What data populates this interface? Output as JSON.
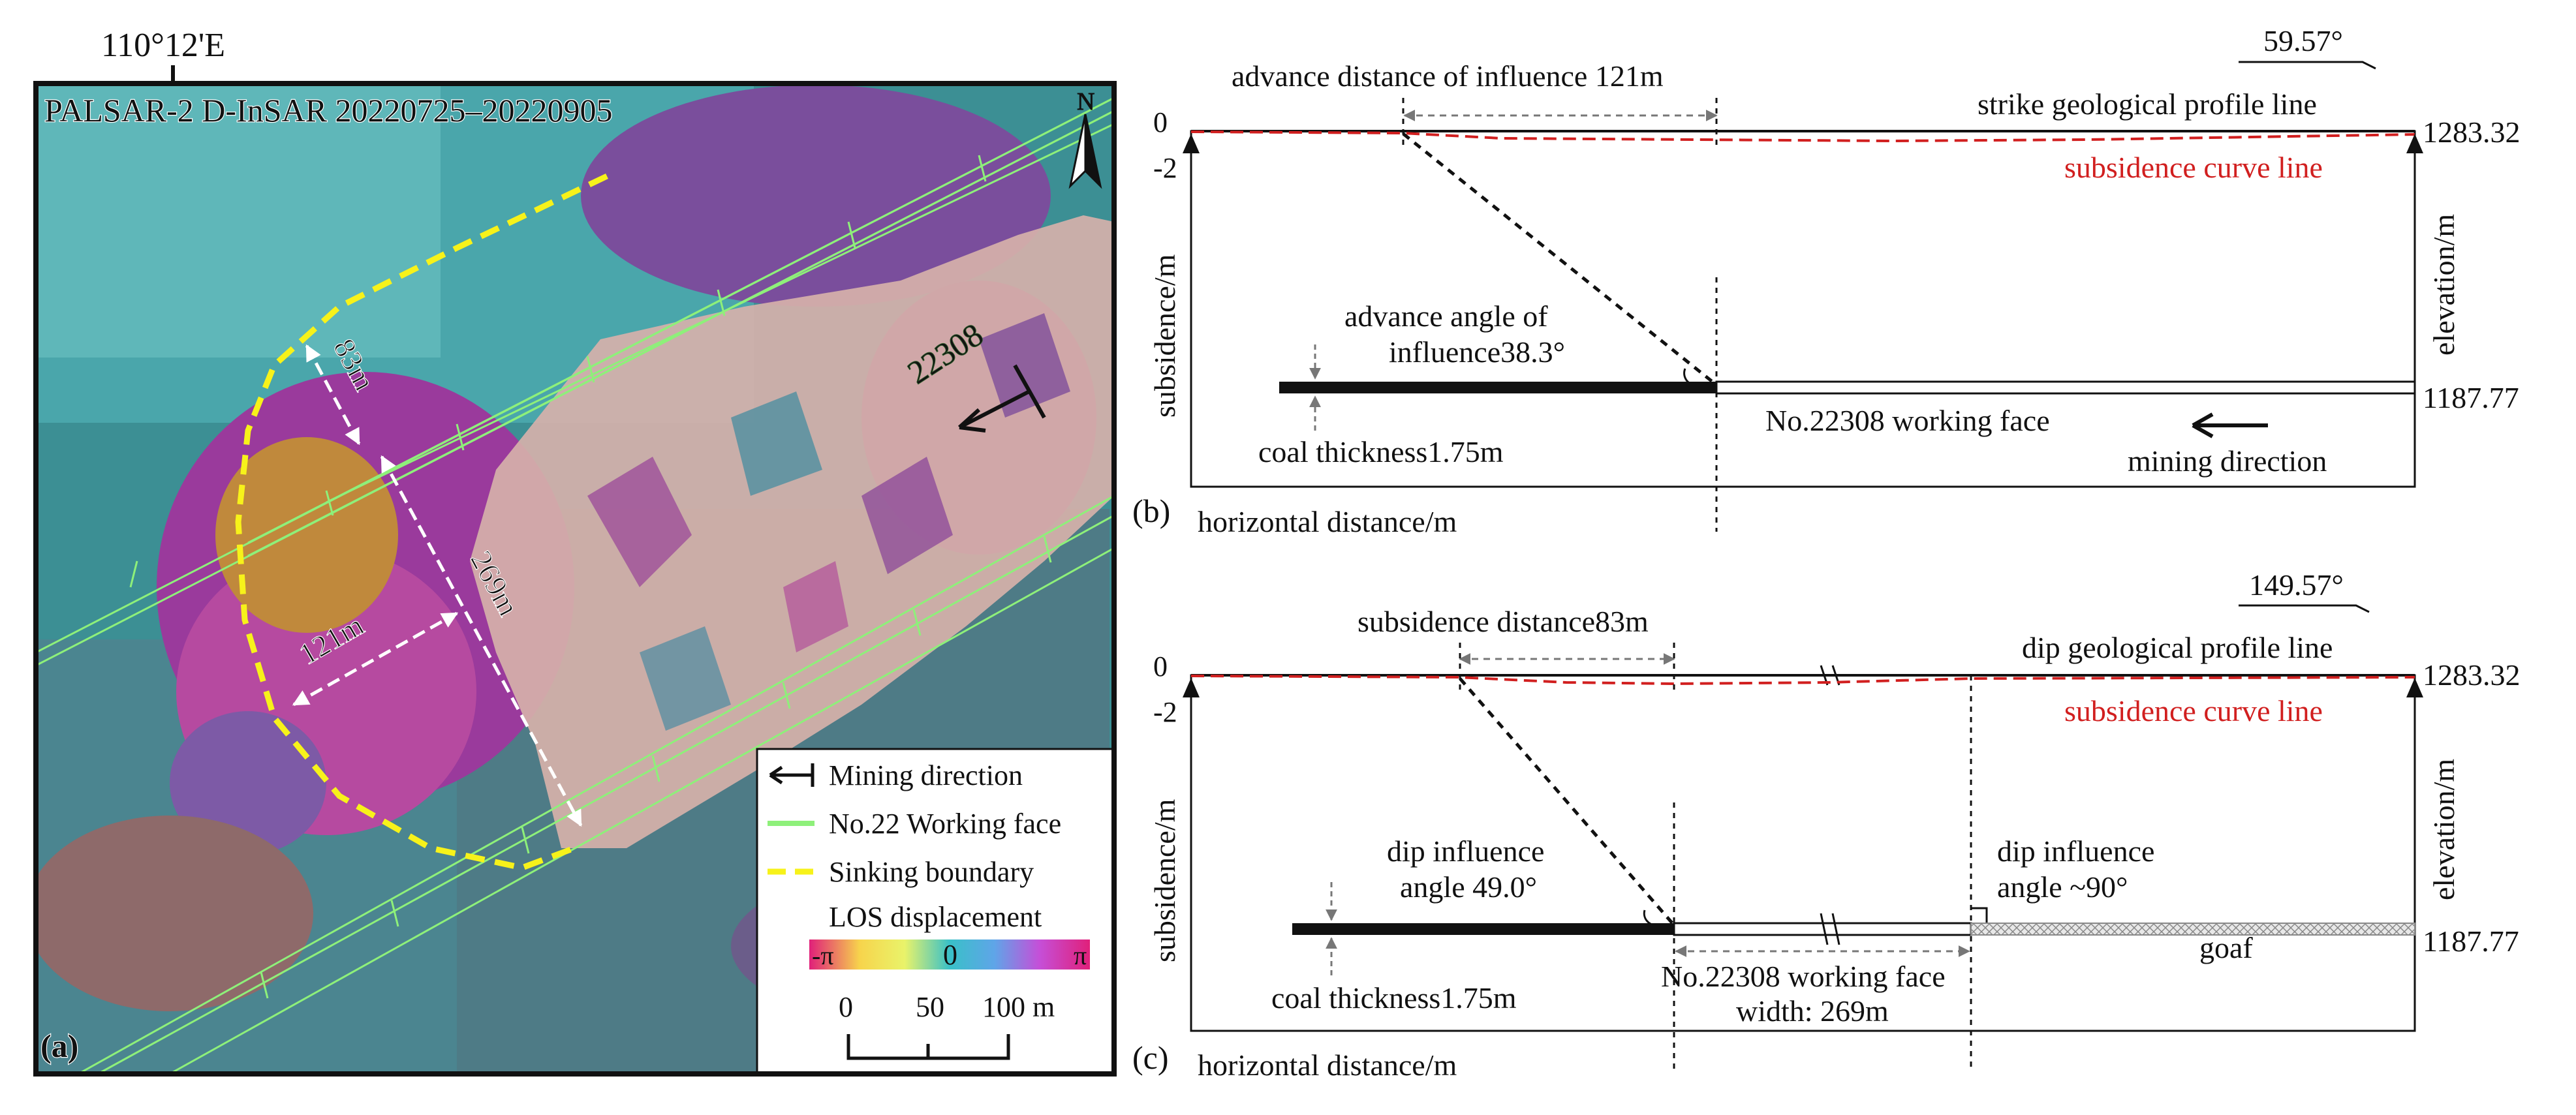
{
  "panel_a": {
    "longitude_label": "110°12'E",
    "title": "PALSAR-2 D-InSAR 20220725–20220905",
    "north_label": "N",
    "panel_label": "(a)",
    "face_label": "22308",
    "dim_83": "83m",
    "dim_121": "121m",
    "dim_269": "269m",
    "legend": {
      "mining_direction": "Mining direction",
      "working_face": "No.22 Working face",
      "sinking_boundary": "Sinking boundary",
      "los_title": "LOS displacement",
      "neg_pi": "-π",
      "zero": "0",
      "pos_pi": "π",
      "scale_labels": [
        "0",
        "50",
        "100 m"
      ]
    },
    "colors": {
      "border": "#111111",
      "working_face": "#8ef07a",
      "sinking_boundary": "#f7f21a",
      "dimension": "#ffffff",
      "goaf_fill": "#d6b1aa"
    }
  },
  "panel_b": {
    "label": "(b)",
    "angle_label": "59.57°",
    "advance_distance": "advance distance of influence 121m",
    "profile_line": "strike  geological profile line",
    "subsidence_curve": "subsidence curve line",
    "tick_zero": "0",
    "tick_minus2": "-2",
    "elev_top": "1283.32",
    "elev_bottom": "1187.77",
    "y_left": "subsidence/m",
    "y_right": "elevation/m",
    "angle_text_1": "advance angle of",
    "angle_text_2": "influence38.3°",
    "coal_thickness": "coal thickness1.75m",
    "working_face": "No.22308 working face",
    "mining_direction": "mining  direction",
    "x_label": "horizontal distance/m"
  },
  "panel_c": {
    "label": "(c)",
    "angle_label": "149.57°",
    "subsidence_distance": "subsidence distance83m",
    "profile_line": "dip geological profile line",
    "subsidence_curve": "subsidence curve line",
    "tick_zero": "0",
    "tick_minus2": "-2",
    "elev_top": "1283.32",
    "elev_bottom": "1187.77",
    "y_left": "subsidence/m",
    "y_right": "elevation/m",
    "dip_left_1": "dip influence",
    "dip_left_2": "angle 49.0°",
    "dip_right_1": "dip influence",
    "dip_right_2": "angle ~90°",
    "coal_thickness": "coal thickness1.75m",
    "working_face_1": "No.22308 working face",
    "working_face_2": "width: 269m",
    "goaf": "goaf",
    "x_label": "horizontal distance/m"
  }
}
